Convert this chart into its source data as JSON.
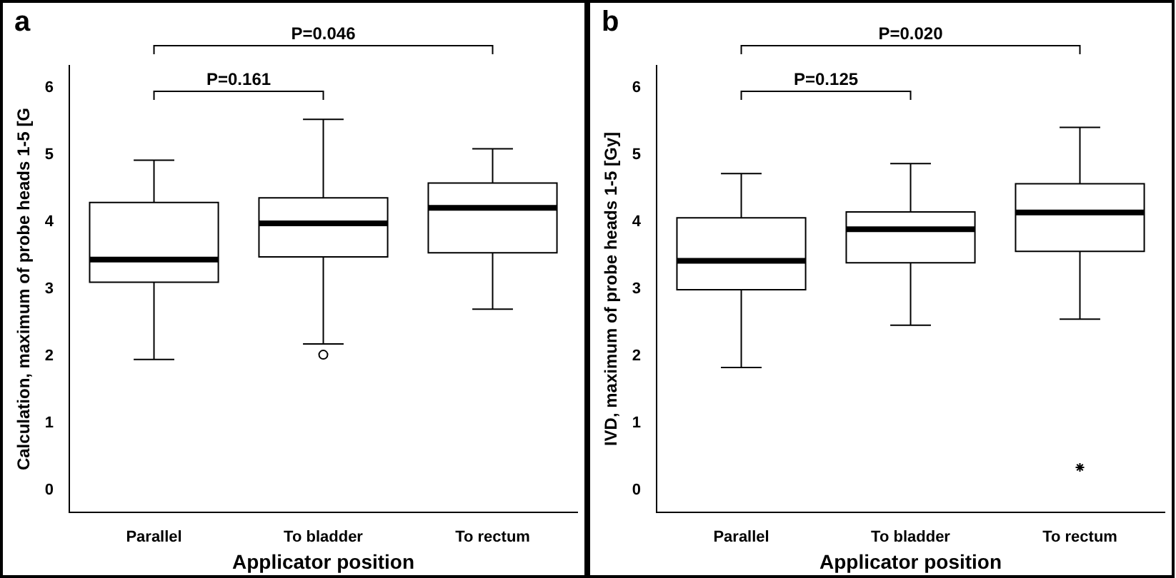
{
  "chart_data": [
    {
      "type": "box",
      "xlabel": "Applicator position",
      "ylabel": "Calculation, maximum of probe heads 1-5 [G",
      "categories": [
        "Parallel",
        "To bladder",
        "To rectum"
      ],
      "ylim": [
        -0.33,
        6.33
      ],
      "yticks": [
        0,
        1,
        2,
        3,
        4,
        5,
        6
      ],
      "grid": false,
      "legend": false,
      "marker": "circle",
      "annotations": [
        "a",
        "P=0.161",
        "P=0.046"
      ],
      "boxes": [
        {
          "low": 1.95,
          "q1": 3.1,
          "median": 3.44,
          "q3": 4.29,
          "high": 4.92
        },
        {
          "low": 2.18,
          "q1": 3.48,
          "median": 3.98,
          "q3": 4.36,
          "high": 5.53,
          "outliers": [
            2.02
          ]
        },
        {
          "low": 2.7,
          "q1": 3.54,
          "median": 4.21,
          "q3": 4.58,
          "high": 5.09
        }
      ]
    },
    {
      "type": "box",
      "xlabel": "Applicator position",
      "ylabel": "IVD, maximum of probe heads 1-5 [Gy]",
      "categories": [
        "Parallel",
        "To bladder",
        "To rectum"
      ],
      "ylim": [
        -0.33,
        6.33
      ],
      "yticks": [
        0,
        1,
        2,
        3,
        4,
        5,
        6
      ],
      "grid": false,
      "legend": false,
      "marker": "star",
      "annotations": [
        "b",
        "P=0.125",
        "P=0.020"
      ],
      "boxes": [
        {
          "low": 1.83,
          "q1": 2.99,
          "median": 3.42,
          "q3": 4.06,
          "high": 4.72
        },
        {
          "low": 2.46,
          "q1": 3.39,
          "median": 3.89,
          "q3": 4.15,
          "high": 4.87
        },
        {
          "low": 2.55,
          "q1": 3.56,
          "median": 4.14,
          "q3": 4.57,
          "high": 5.41,
          "outliers": [
            0.34
          ]
        }
      ]
    }
  ]
}
